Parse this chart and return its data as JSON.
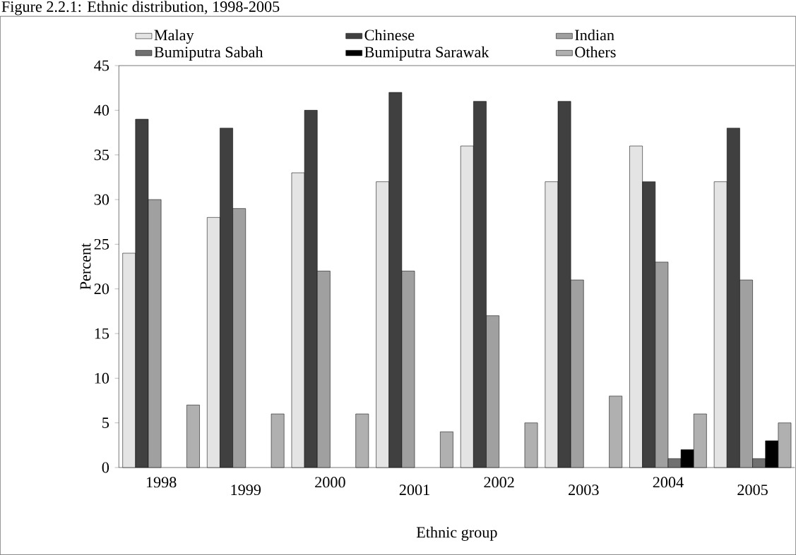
{
  "chart_data": {
    "type": "bar",
    "title": "Figure 2.2.1: Ethnic distribution, 1998-2005",
    "xlabel": "Ethnic group",
    "ylabel": "Percent",
    "categories": [
      "1998",
      "1999",
      "2000",
      "2001",
      "2002",
      "2003",
      "2004",
      "2005"
    ],
    "series": [
      {
        "name": "Malay",
        "color": "#e4e4e4",
        "values": [
          24,
          28,
          33,
          32,
          36,
          32,
          36,
          32
        ]
      },
      {
        "name": "Chinese",
        "color": "#404040",
        "values": [
          39,
          38,
          40,
          42,
          41,
          41,
          32,
          38
        ]
      },
      {
        "name": "Indian",
        "color": "#a0a0a0",
        "values": [
          30,
          29,
          22,
          22,
          17,
          21,
          23,
          21
        ]
      },
      {
        "name": "Bumiputra Sabah",
        "color": "#707070",
        "values": [
          null,
          null,
          null,
          null,
          null,
          null,
          1,
          1
        ]
      },
      {
        "name": "Bumiputra Sarawak",
        "color": "#000000",
        "values": [
          null,
          null,
          null,
          null,
          null,
          null,
          2,
          3
        ]
      },
      {
        "name": "Others",
        "color": "#b0b0b0",
        "values": [
          7,
          6,
          6,
          4,
          5,
          8,
          6,
          5
        ]
      }
    ],
    "ylim": [
      0,
      45
    ],
    "yticks": [
      0,
      5,
      10,
      15,
      20,
      25,
      30,
      35,
      40,
      45
    ],
    "legend": "top",
    "grid": false
  }
}
